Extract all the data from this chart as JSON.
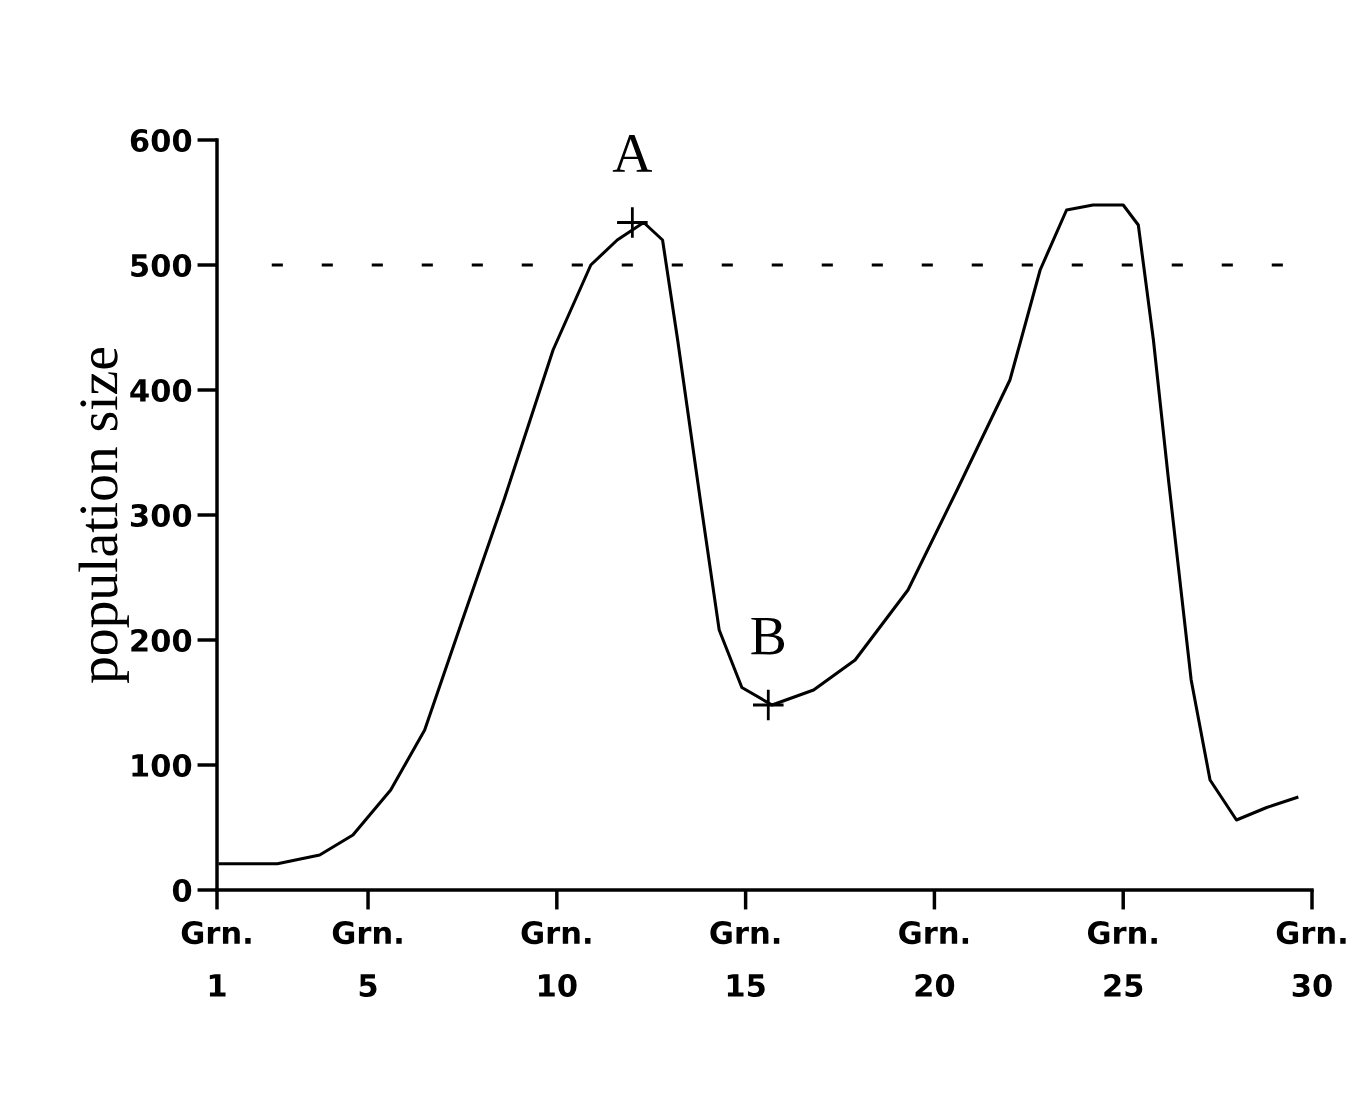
{
  "chart_data": {
    "type": "line",
    "ylabel": "population size",
    "xlim": [
      1,
      30
    ],
    "ylim": [
      0,
      600
    ],
    "xticks": [
      {
        "value": 1,
        "label": "Grn.\n1"
      },
      {
        "value": 5,
        "label": "Grn.\n5"
      },
      {
        "value": 10,
        "label": "Grn.\n10"
      },
      {
        "value": 15,
        "label": "Grn.\n15"
      },
      {
        "value": 20,
        "label": "Grn.\n20"
      },
      {
        "value": 25,
        "label": "Grn.\n25"
      },
      {
        "value": 30,
        "label": "Grn.\n30"
      }
    ],
    "yticks": [
      0,
      100,
      200,
      300,
      400,
      500,
      600
    ],
    "series": [
      {
        "color": "#000000",
        "x": [
          1.08,
          2.6,
          3.72,
          4.6,
          5.6,
          6.5,
          7.5,
          8.6,
          9.9,
          10.9,
          11.6,
          12.3,
          12.8,
          13.2,
          13.8,
          14.3,
          14.9,
          15.7,
          16.8,
          17.9,
          19.3,
          20.6,
          22.0,
          22.8,
          23.5,
          24.2,
          25.0,
          25.4,
          25.8,
          26.2,
          26.8,
          27.3,
          28.0,
          28.8,
          29.6
        ],
        "values": [
          21,
          21,
          28,
          44,
          80,
          128,
          216,
          312,
          432,
          500,
          520,
          534,
          520,
          440,
          312,
          208,
          162,
          148,
          160,
          184,
          240,
          320,
          408,
          496,
          544,
          548,
          548,
          532,
          440,
          328,
          168,
          88,
          56,
          66,
          74
        ]
      }
    ],
    "ref_lines": [
      {
        "axis": "y",
        "value": 500,
        "color": "#000000",
        "line_style": "dashed"
      }
    ],
    "annotations": [
      {
        "text": "A",
        "x": 12.0,
        "y": 534
      },
      {
        "text": "B",
        "x": 15.6,
        "y": 148
      }
    ],
    "grid": false,
    "legend": false,
    "marker": "none",
    "line_style": "solid"
  }
}
